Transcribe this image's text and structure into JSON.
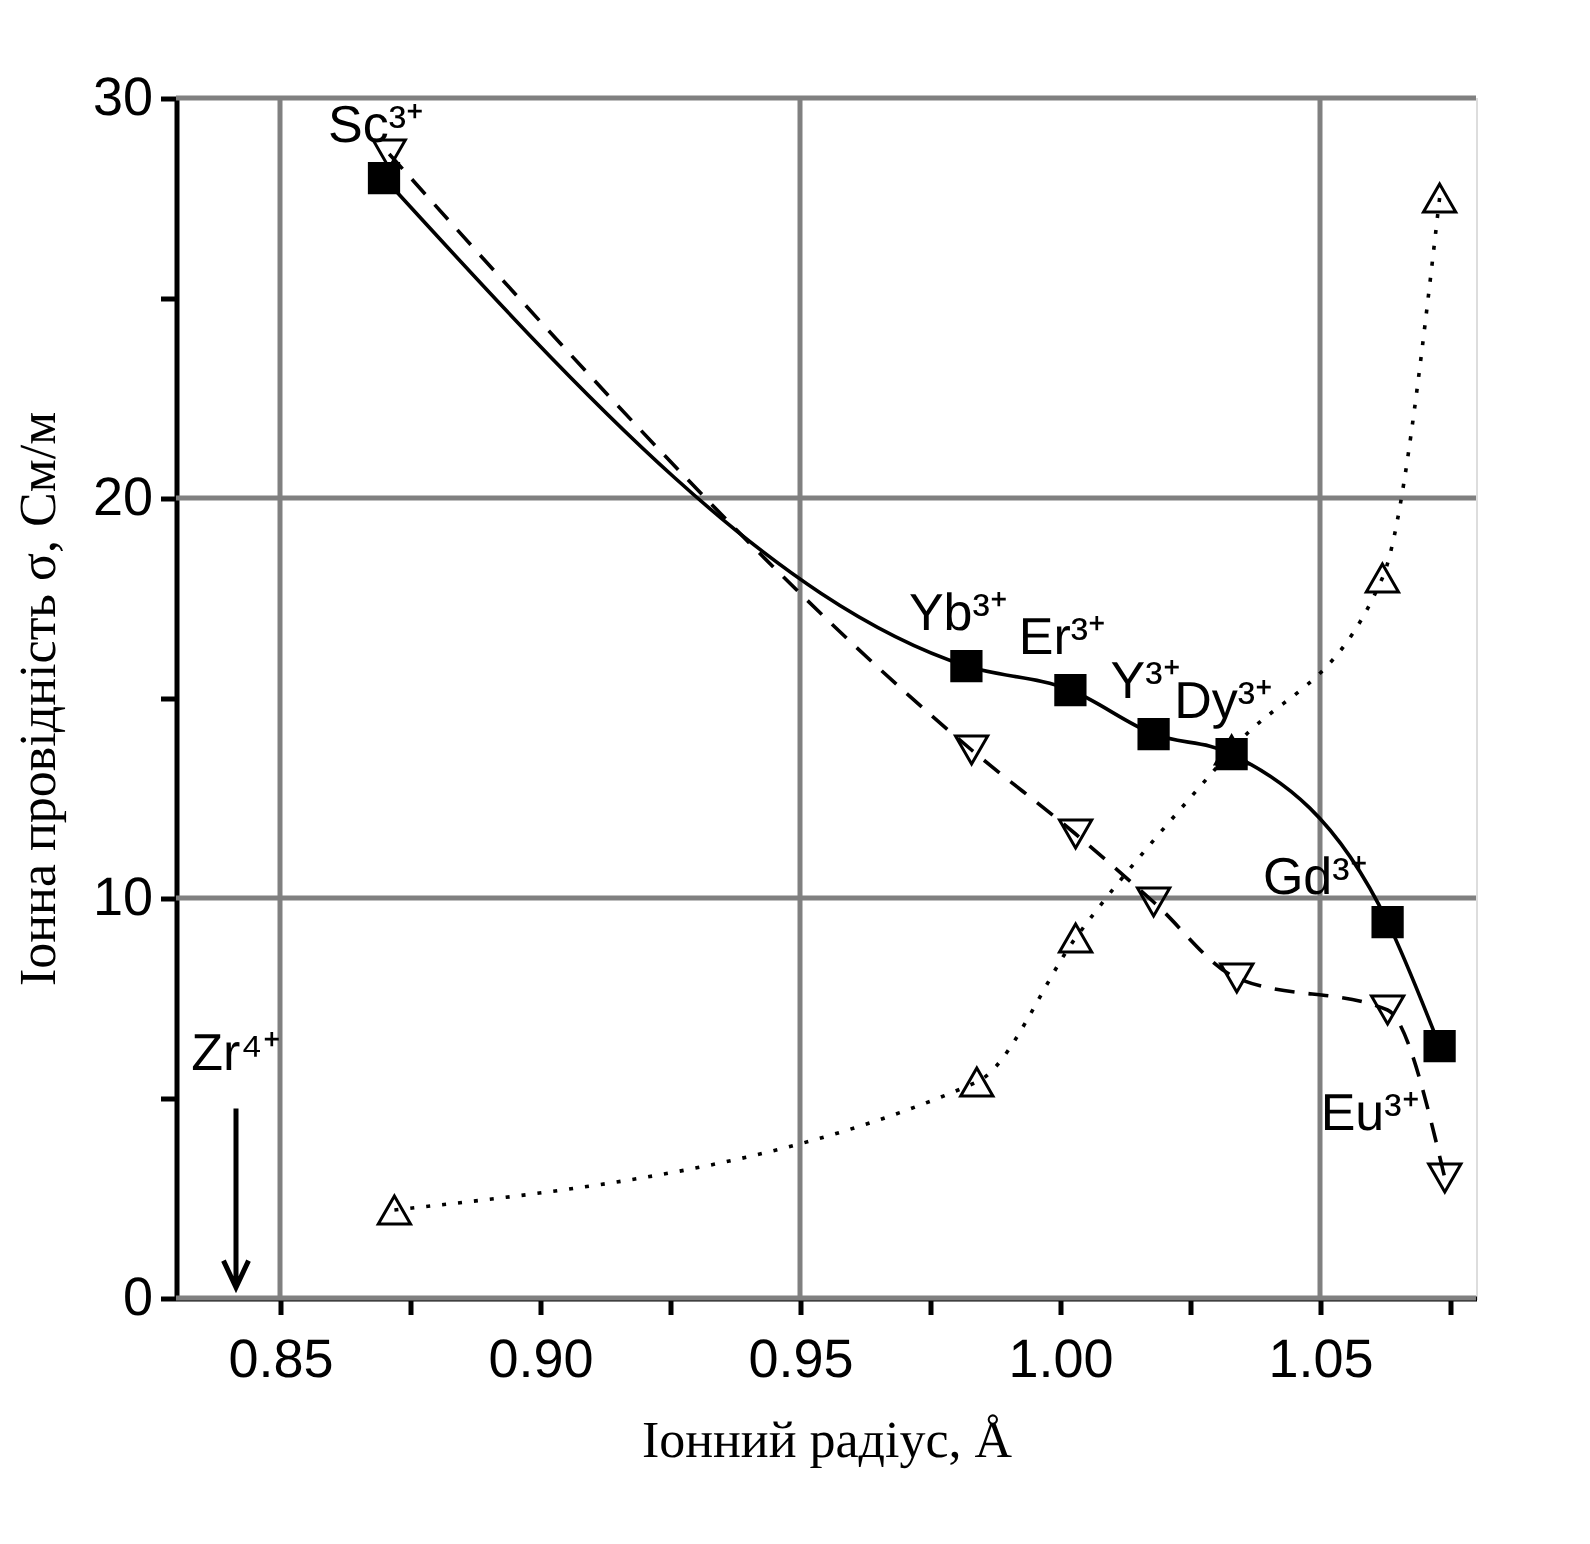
{
  "chart_data": {
    "type": "line",
    "xlabel": "Іонний радіус, Å",
    "ylabel": "Іонна провідність σ, См/м",
    "xlim": [
      0.83,
      1.08
    ],
    "ylim": [
      0,
      30
    ],
    "xticks": [
      0.85,
      {
        "value": 0.875,
        "label": null
      },
      {
        "value": 0.9,
        "label": "0.90"
      },
      {
        "value": 0.925,
        "label": null
      },
      0.95,
      {
        "value": 0.975,
        "label": null
      },
      {
        "value": 1.0,
        "label": "1.00"
      },
      {
        "value": 1.025,
        "label": null
      },
      1.05,
      {
        "value": 1.075,
        "label": null
      }
    ],
    "yticks": [
      0,
      {
        "value": 5,
        "label": null
      },
      10,
      {
        "value": 15,
        "label": null
      },
      20,
      {
        "value": 25,
        "label": null
      },
      30
    ],
    "grid": true,
    "series": [
      {
        "color": "#000000",
        "marker": "square",
        "line_style": "solid",
        "x": [
          0.87,
          0.982,
          1.002,
          1.018,
          1.033,
          1.063,
          1.073
        ],
        "values": [
          28.0,
          15.8,
          15.2,
          14.1,
          13.6,
          9.4,
          6.3
        ]
      },
      {
        "color": "#000000",
        "marker": "triangle-down",
        "line_style": "dashed",
        "x": [
          0.871,
          0.983,
          1.003,
          1.018,
          1.034,
          1.063,
          1.074
        ],
        "values": [
          28.6,
          13.7,
          11.6,
          9.9,
          8.0,
          7.2,
          3.0
        ]
      },
      {
        "color": "#000000",
        "marker": "triangle",
        "line_style": "dotted",
        "x": [
          0.872,
          0.984,
          1.003,
          1.033,
          1.062,
          1.073
        ],
        "values": [
          2.2,
          5.4,
          9.0,
          13.7,
          18.0,
          27.5
        ]
      }
    ],
    "annotations": [
      {
        "text": "Sc³⁺",
        "x": 0.87,
        "y": 28.0
      },
      {
        "text": "Yb³⁺",
        "x": 0.982,
        "y": 15.8
      },
      {
        "text": "Er³⁺",
        "x": 1.002,
        "y": 15.2
      },
      {
        "text": "Y³⁺",
        "x": 1.018,
        "y": 14.1
      },
      {
        "text": "Dy³⁺",
        "x": 1.033,
        "y": 13.6
      },
      {
        "text": "Gd³⁺",
        "x": 1.063,
        "y": 9.4
      },
      {
        "text": "Eu³⁺",
        "x": 1.073,
        "y": 6.3
      },
      "Zr⁴⁺"
    ]
  }
}
